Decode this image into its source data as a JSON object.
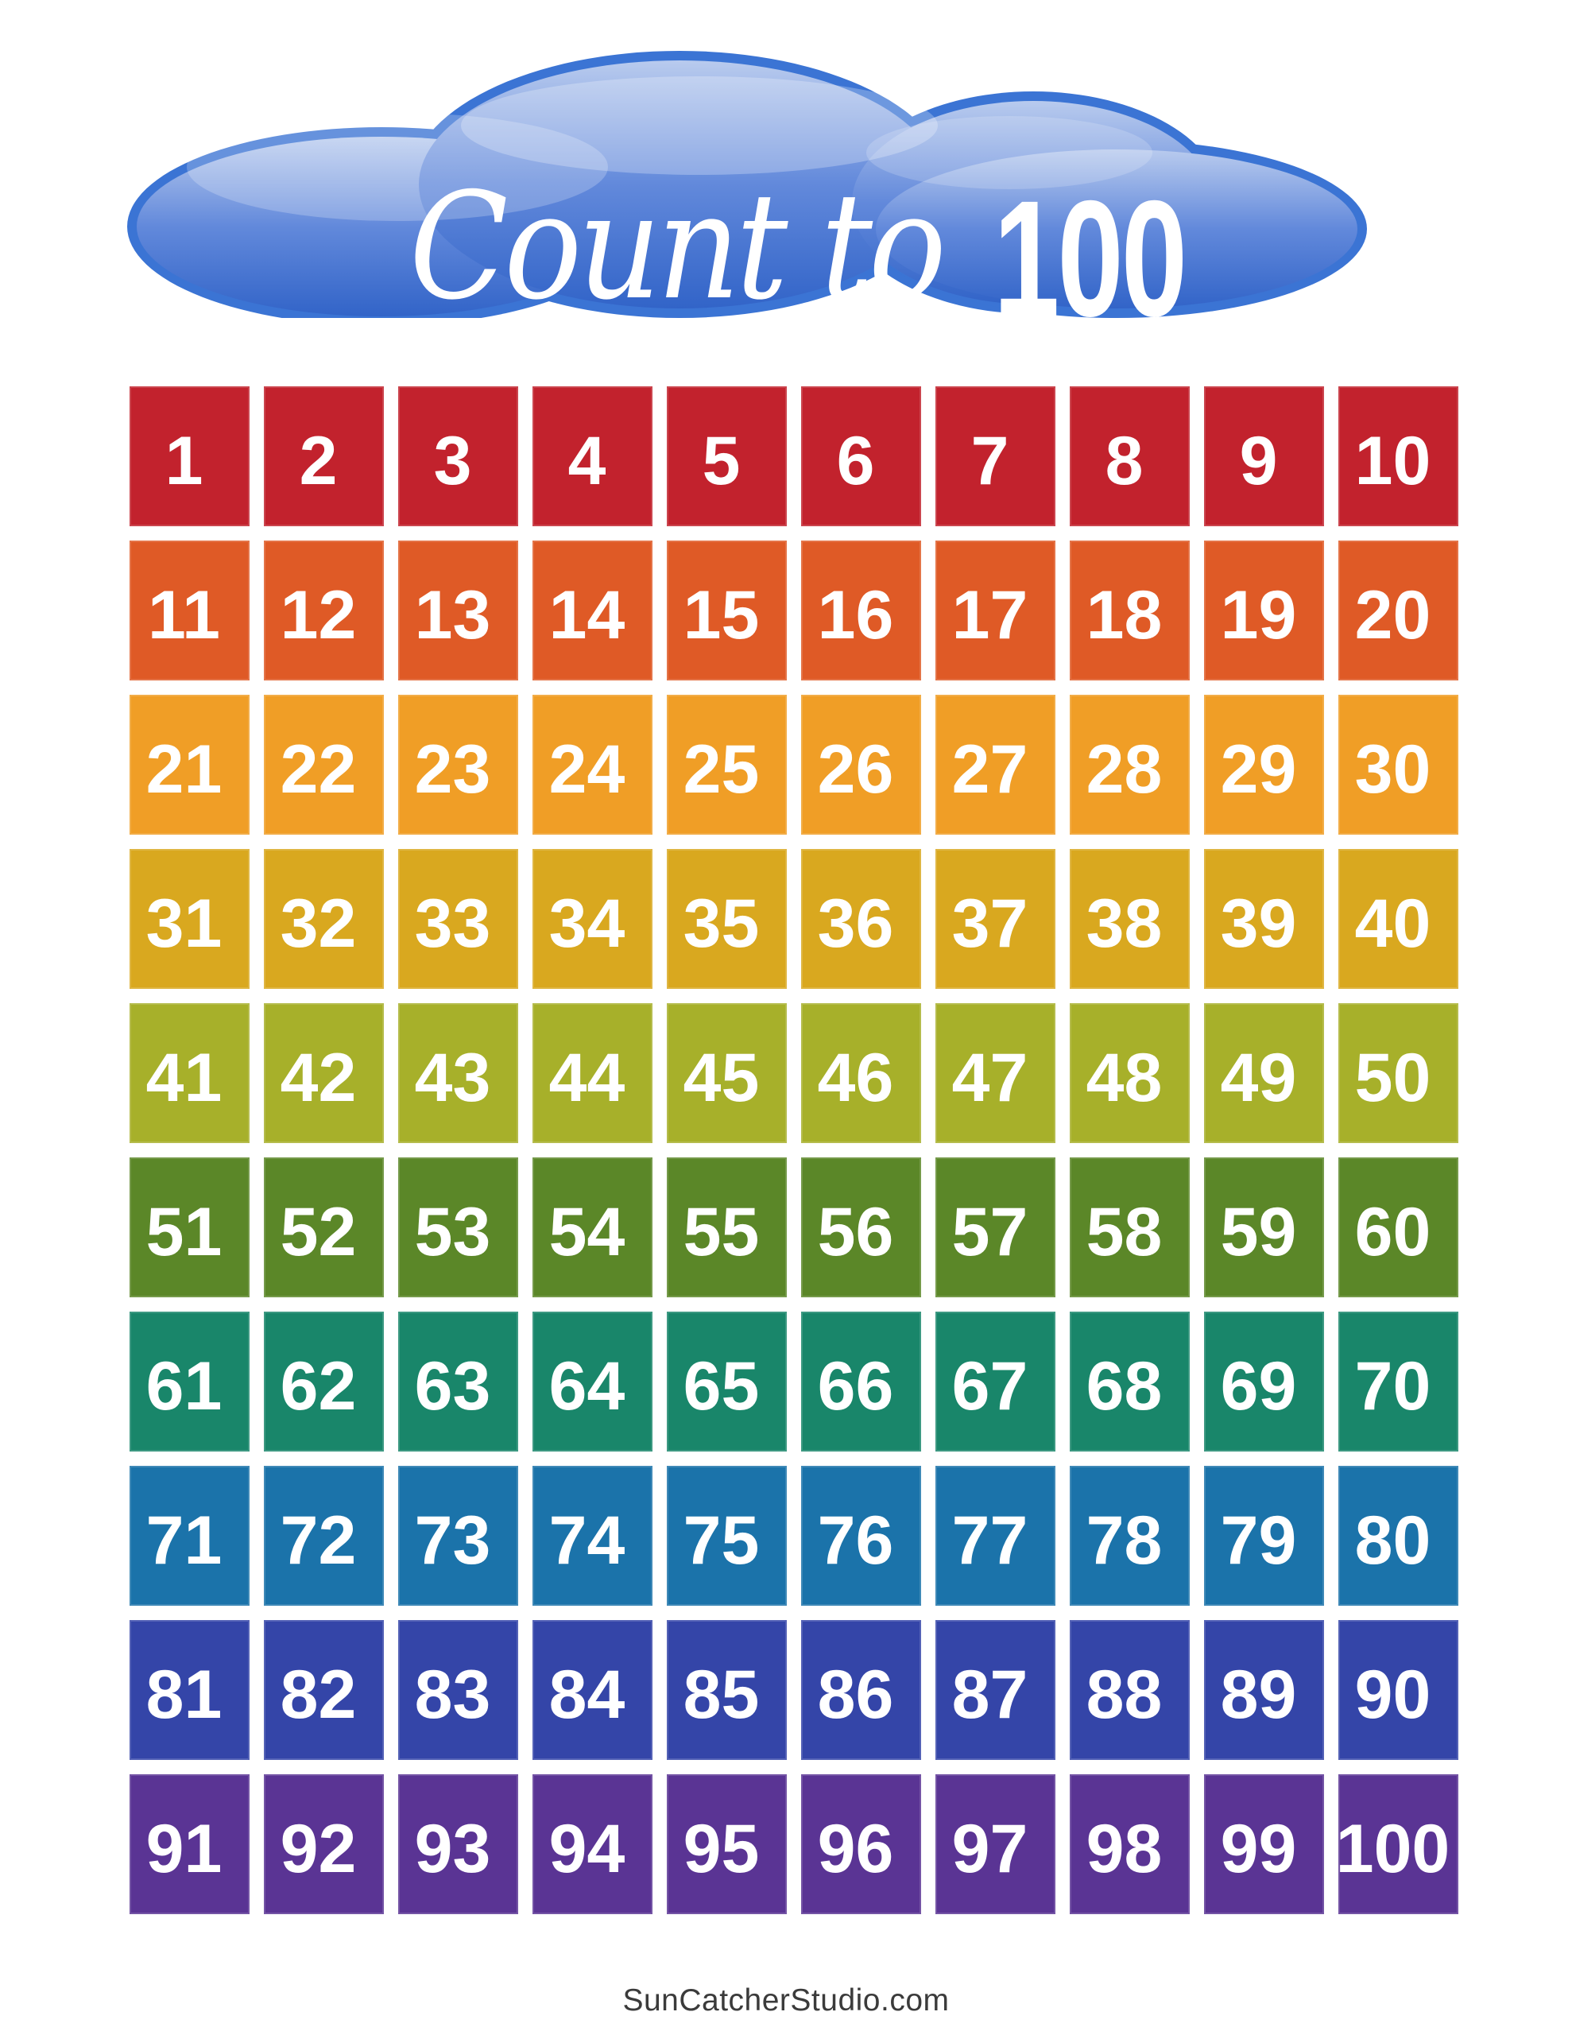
{
  "page": {
    "background": "#ffffff"
  },
  "banner": {
    "script_text": "Count to",
    "number_text": "100",
    "border_color": "#3b74d4",
    "gradient_top": "#b9cbee",
    "gradient_mid": "#6289db",
    "gradient_bottom": "#3264c8",
    "text_color": "#ffffff"
  },
  "grid": {
    "number_color": "#ffffff",
    "rows": [
      {
        "color": "#c2222d",
        "numbers": [
          "1",
          "2",
          "3",
          "4",
          "5",
          "6",
          "7",
          "8",
          "9",
          "10"
        ]
      },
      {
        "color": "#df5a26",
        "numbers": [
          "11",
          "12",
          "13",
          "14",
          "15",
          "16",
          "17",
          "18",
          "19",
          "20"
        ]
      },
      {
        "color": "#f09e26",
        "numbers": [
          "21",
          "22",
          "23",
          "24",
          "25",
          "26",
          "27",
          "28",
          "29",
          "30"
        ]
      },
      {
        "color": "#d9a81f",
        "numbers": [
          "31",
          "32",
          "33",
          "34",
          "35",
          "36",
          "37",
          "38",
          "39",
          "40"
        ]
      },
      {
        "color": "#a7b02a",
        "numbers": [
          "41",
          "42",
          "43",
          "44",
          "45",
          "46",
          "47",
          "48",
          "49",
          "50"
        ]
      },
      {
        "color": "#5b8728",
        "numbers": [
          "51",
          "52",
          "53",
          "54",
          "55",
          "56",
          "57",
          "58",
          "59",
          "60"
        ]
      },
      {
        "color": "#19866a",
        "numbers": [
          "61",
          "62",
          "63",
          "64",
          "65",
          "66",
          "67",
          "68",
          "69",
          "70"
        ]
      },
      {
        "color": "#1b73aa",
        "numbers": [
          "71",
          "72",
          "73",
          "74",
          "75",
          "76",
          "77",
          "78",
          "79",
          "80"
        ]
      },
      {
        "color": "#3445a8",
        "numbers": [
          "81",
          "82",
          "83",
          "84",
          "85",
          "86",
          "87",
          "88",
          "89",
          "90"
        ]
      },
      {
        "color": "#5a3494",
        "numbers": [
          "91",
          "92",
          "93",
          "94",
          "95",
          "96",
          "97",
          "98",
          "99",
          "100"
        ]
      }
    ]
  },
  "footer": {
    "text": "SunCatcherStudio.com",
    "color": "#3b3b3b"
  }
}
